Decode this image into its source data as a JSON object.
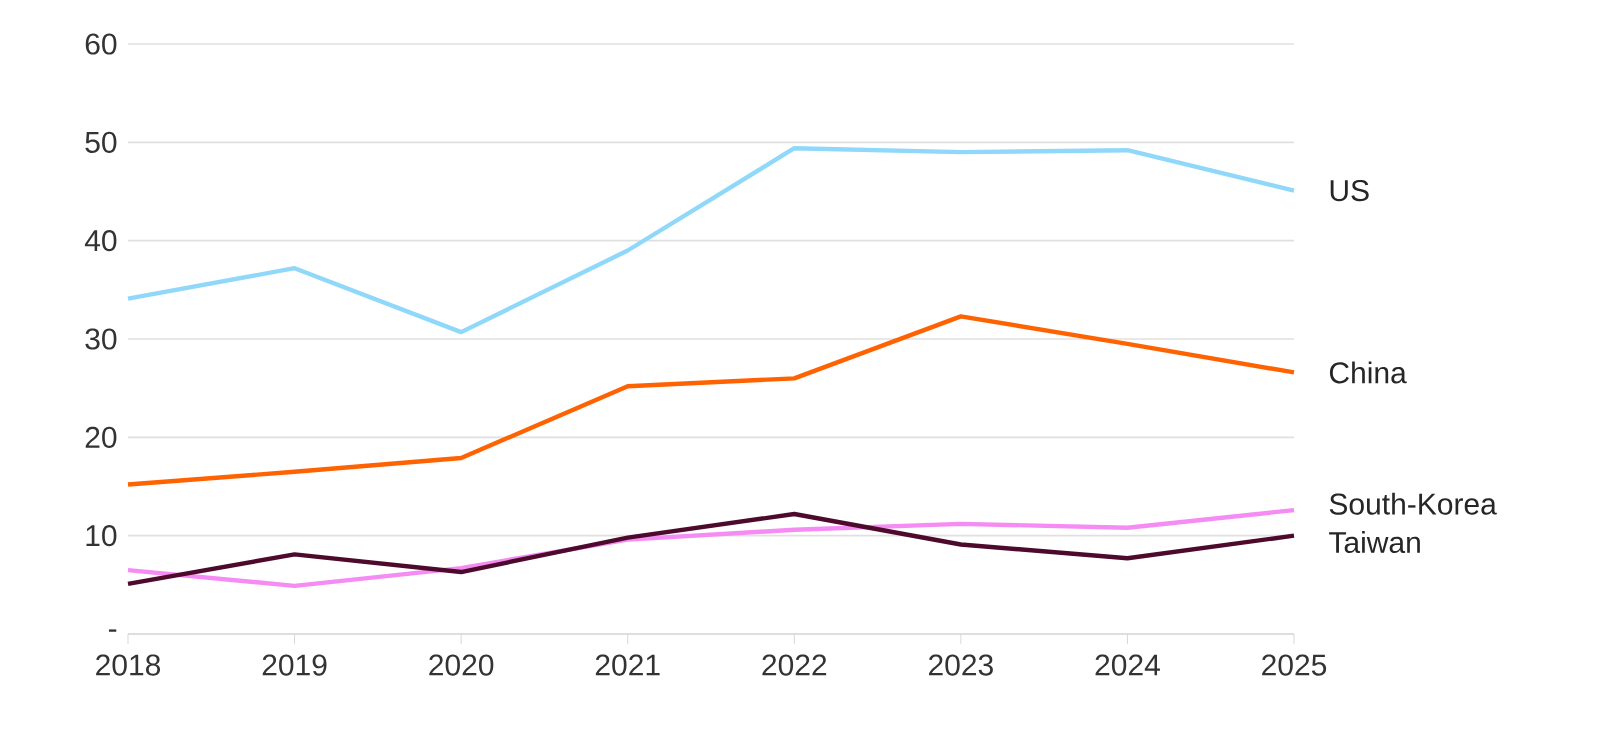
{
  "chart_data": {
    "type": "line",
    "x": [
      2018,
      2019,
      2020,
      2021,
      2022,
      2023,
      2024,
      2025
    ],
    "series": [
      {
        "name": "US",
        "color": "#8fd8fa",
        "values": [
          34.1,
          37.2,
          30.7,
          39.0,
          49.4,
          49.0,
          49.2,
          45.1
        ]
      },
      {
        "name": "China",
        "color": "#ff6200",
        "values": [
          15.2,
          16.5,
          17.9,
          25.2,
          26.0,
          32.3,
          29.5,
          26.6
        ]
      },
      {
        "name": "South-Korea",
        "color": "#f58cf3",
        "values": [
          6.5,
          4.9,
          6.7,
          9.6,
          10.6,
          11.2,
          10.8,
          12.6
        ]
      },
      {
        "name": "Taiwan",
        "color": "#4d0a2c",
        "values": [
          5.1,
          8.1,
          6.3,
          9.8,
          12.2,
          9.1,
          7.7,
          10.0
        ]
      }
    ],
    "xlim": [
      2018,
      2025
    ],
    "xticks": [
      2018,
      2019,
      2020,
      2021,
      2022,
      2023,
      2024,
      2025
    ],
    "ylim": [
      0,
      60
    ],
    "yticks": [
      {
        "value": 0,
        "label": "-"
      },
      10,
      20,
      30,
      40,
      50,
      60
    ],
    "grid": "y",
    "legend": false,
    "marker": "none",
    "line_style": "solid"
  }
}
